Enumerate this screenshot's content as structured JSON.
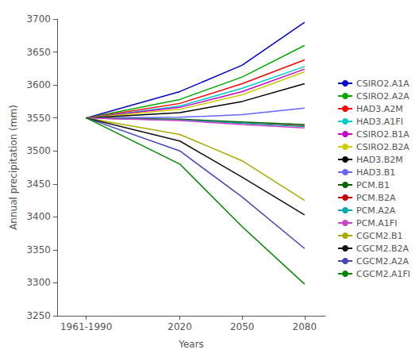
{
  "chart_data": {
    "type": "line",
    "xlabel": "Years",
    "ylabel": "Annual precipitation (mm)",
    "x": [
      1975,
      2020,
      2050,
      2080
    ],
    "xlim": [
      1961,
      2090
    ],
    "xticks": [
      {
        "value": 1975,
        "label": "1961-1990"
      },
      2020,
      2050,
      2080
    ],
    "ylim": [
      3250,
      3700
    ],
    "yticks": [
      3250,
      3300,
      3350,
      3400,
      3450,
      3500,
      3550,
      3600,
      3650,
      3700
    ],
    "grid": false,
    "legend": "right",
    "series": [
      {
        "name": "CSIRO2.A1A",
        "color": "#0000cc",
        "values": [
          3550,
          3590,
          3630,
          3695
        ]
      },
      {
        "name": "CSIRO2.A2A",
        "color": "#00aa00",
        "values": [
          3550,
          3578,
          3612,
          3660
        ]
      },
      {
        "name": "HAD3.A2M",
        "color": "#ff0000",
        "values": [
          3550,
          3572,
          3602,
          3638
        ]
      },
      {
        "name": "HAD3.A1FI",
        "color": "#00cccc",
        "values": [
          3550,
          3568,
          3595,
          3628
        ]
      },
      {
        "name": "CSIRO2.B1A",
        "color": "#cc00cc",
        "values": [
          3550,
          3566,
          3590,
          3624
        ]
      },
      {
        "name": "CSIRO2.B2A",
        "color": "#cccc00",
        "values": [
          3550,
          3563,
          3585,
          3620
        ]
      },
      {
        "name": "HAD3.B2M",
        "color": "#000000",
        "values": [
          3550,
          3558,
          3575,
          3602
        ]
      },
      {
        "name": "HAD3.B1",
        "color": "#6666ff",
        "values": [
          3550,
          3551,
          3555,
          3565
        ]
      },
      {
        "name": "PCM.B1",
        "color": "#006600",
        "values": [
          3550,
          3548,
          3544,
          3540
        ]
      },
      {
        "name": "PCM.B2A",
        "color": "#cc0000",
        "values": [
          3550,
          3547,
          3542,
          3538
        ]
      },
      {
        "name": "PCM.A2A",
        "color": "#00aaaa",
        "values": [
          3550,
          3547,
          3542,
          3537
        ]
      },
      {
        "name": "PCM.A1FI",
        "color": "#cc44cc",
        "values": [
          3550,
          3546,
          3540,
          3535
        ]
      },
      {
        "name": "CGCM2.B1",
        "color": "#aaaa00",
        "values": [
          3550,
          3525,
          3485,
          3425
        ]
      },
      {
        "name": "CGCM2.B2A",
        "color": "#111111",
        "values": [
          3550,
          3515,
          3460,
          3403
        ]
      },
      {
        "name": "CGCM2.A2A",
        "color": "#4444bb",
        "values": [
          3550,
          3500,
          3430,
          3352
        ]
      },
      {
        "name": "CGCM2.A1FI",
        "color": "#008800",
        "values": [
          3550,
          3480,
          3385,
          3298
        ]
      }
    ]
  }
}
